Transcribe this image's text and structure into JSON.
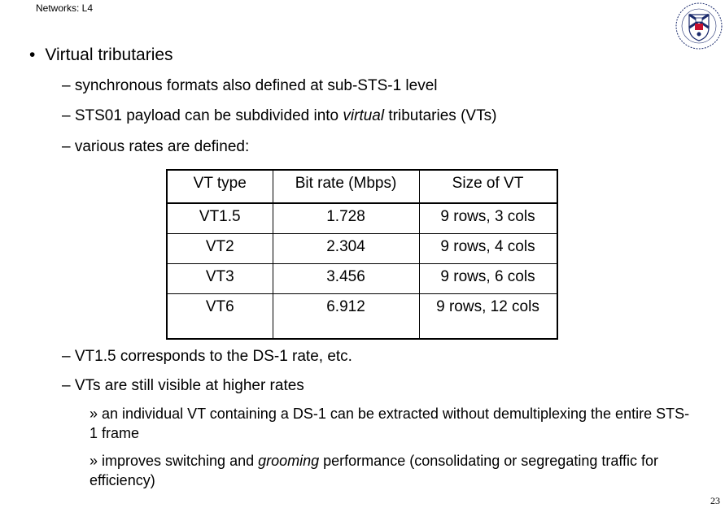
{
  "header": {
    "title": "Networks: L4"
  },
  "logo": {
    "name": "university-crest-icon",
    "colors": {
      "navy": "#1a2a6c",
      "red": "#c8102e"
    }
  },
  "content": {
    "main_bullet": {
      "symbol": "•",
      "text": "Virtual tributaries"
    },
    "sub1": "– synchronous formats also defined at sub-STS-1 level",
    "sub2": {
      "before": "– STS01 payload can be subdivided into ",
      "italic": "virtual",
      "after": " tributaries (VTs)"
    },
    "sub3": "– various rates are defined:",
    "sub4": "– VT1.5 corresponds to the DS-1 rate, etc.",
    "sub5": "– VTs are still visible at higher rates",
    "note1": "» an individual VT containing a DS-1 can be extracted without demultiplexing the entire STS-1 frame",
    "note2": {
      "before": "» improves switching and ",
      "italic": "grooming",
      "after": " performance (consolidating or segregating traffic for efficiency)"
    }
  },
  "table": {
    "headers": [
      "VT type",
      "Bit rate (Mbps)",
      "Size of VT"
    ],
    "rows": [
      [
        "VT1.5",
        "1.728",
        "9 rows, 3 cols"
      ],
      [
        "VT2",
        "2.304",
        "9 rows, 4 cols"
      ],
      [
        "VT3",
        "3.456",
        "9 rows, 6 cols"
      ],
      [
        "VT6",
        "6.912",
        "9 rows, 12 cols"
      ]
    ]
  },
  "page_number": "23"
}
